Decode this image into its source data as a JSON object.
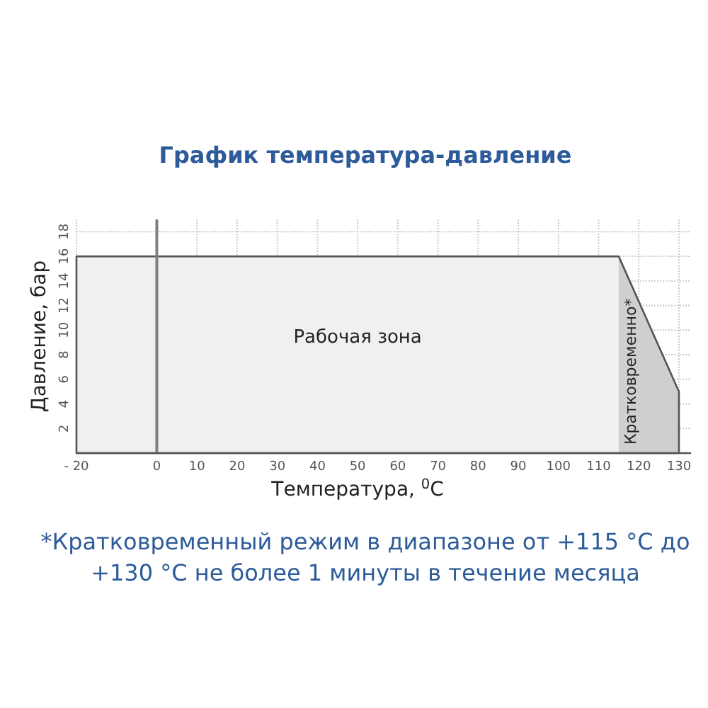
{
  "chart_data": {
    "type": "area",
    "title": "График температура-давление",
    "xlabel": "Температура, $^{0}$C",
    "ylabel": "Давление, бар",
    "x": [
      -20,
      115,
      130
    ],
    "series": [
      {
        "color": "#f0f0f0",
        "values": [
          16,
          16,
          5
        ]
      }
    ],
    "xlim": [
      -20,
      133
    ],
    "ylim": [
      0,
      19
    ],
    "xticks": [
      {
        "value": -20,
        "label": "- 20"
      },
      0,
      10,
      20,
      30,
      40,
      50,
      60,
      70,
      80,
      90,
      100,
      110,
      120,
      130
    ],
    "yticks": [
      2,
      4,
      6,
      8,
      10,
      12,
      14,
      16,
      18
    ],
    "grid": true,
    "ref_lines": [
      {
        "axis": "x",
        "value": 0,
        "color": "#7f7f7f"
      }
    ],
    "bands": [
      {
        "axis": "x",
        "from": 115,
        "to": 130,
        "label": "Кратковременно*",
        "color": "#cfcfcf"
      }
    ],
    "annotations": [
      "Рабочая зона",
      "*Кратковременный режим в диапазоне от +115 °C до +130 °C не более 1 минуты в течение месяца"
    ]
  }
}
